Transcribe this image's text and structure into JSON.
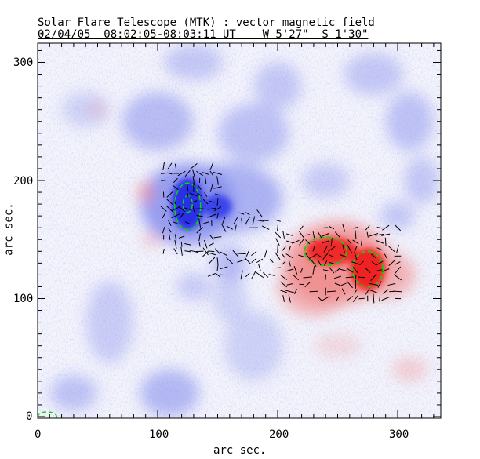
{
  "title": "Solar Flare Telescope (MTK) : vector magnetic field",
  "subtitle": "02/04/05  08:02:05-08:03:11 UT    W 5'27\"  S 1'30\"",
  "chart_data": {
    "type": "heatmap",
    "title": "Solar Flare Telescope (MTK) : vector magnetic field",
    "subtitle": "02/04/05  08:02:05-08:03:11 UT    W 5'27\"  S 1'30\"",
    "xlabel": "arc sec.",
    "ylabel": "arc sec.",
    "xlim": [
      0,
      336
    ],
    "ylim": [
      0,
      317
    ],
    "xticks": [
      "0",
      "100",
      "200",
      "300"
    ],
    "yticks": [
      "0",
      "100",
      "200",
      "300"
    ],
    "colors": {
      "negative": "#4455ee",
      "positive": "#ee3333",
      "contour": "#00dd00",
      "vectors": "#000000"
    },
    "regions": [
      {
        "polarity": "negative",
        "x": 125,
        "y": 180,
        "label": "blue spot"
      },
      {
        "polarity": "positive",
        "x": 260,
        "y": 130,
        "label": "red spot"
      }
    ]
  }
}
